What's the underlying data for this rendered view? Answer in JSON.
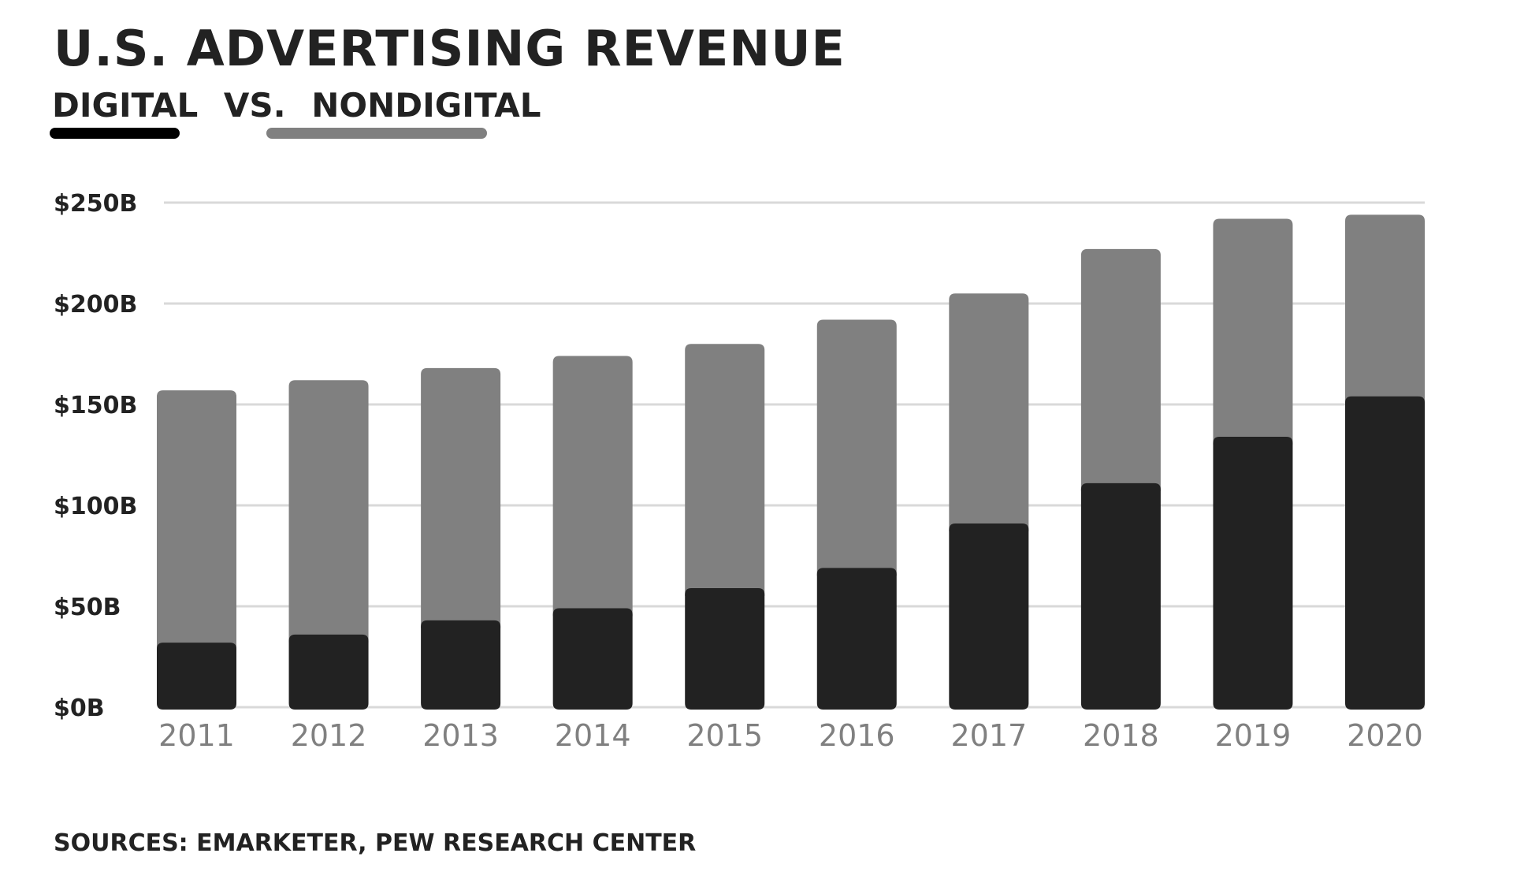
{
  "title": "U.S. ADVERTISING REVENUE",
  "subtitle": {
    "digital_label": "DIGITAL",
    "vs_label": "VS.",
    "nondigital_label": "NONDIGITAL"
  },
  "source": "SOURCES: EMARKETER, PEW RESEARCH CENTER",
  "colors": {
    "digital": "#222222",
    "nondigital": "#808080",
    "legend_digital": "#000000",
    "gridline": "#d9d9d9",
    "xtick": "#808080"
  },
  "chart_data": {
    "type": "bar",
    "stacked": true,
    "title": "U.S. ADVERTISING REVENUE",
    "subtitle": "DIGITAL VS. NONDIGITAL",
    "xlabel": "",
    "ylabel": "",
    "categories": [
      "2011",
      "2012",
      "2013",
      "2014",
      "2015",
      "2016",
      "2017",
      "2018",
      "2019",
      "2020"
    ],
    "series": [
      {
        "name": "Digital",
        "color": "#222222",
        "values": [
          32,
          36,
          43,
          49,
          59,
          69,
          91,
          111,
          134,
          154
        ]
      },
      {
        "name": "Nondigital",
        "color": "#808080",
        "values": [
          125,
          126,
          125,
          125,
          121,
          123,
          114,
          116,
          108,
          90
        ]
      }
    ],
    "totals": [
      157,
      162,
      168,
      174,
      180,
      192,
      205,
      227,
      242,
      244
    ],
    "ylim": [
      0,
      250
    ],
    "yticks": [
      0,
      50,
      100,
      150,
      200,
      250
    ],
    "ytick_labels": [
      "$0B",
      "$50B",
      "$100B",
      "$150B",
      "$200B",
      "$250B"
    ],
    "grid": true,
    "legend": "subtitle-underlines-top-left",
    "source": "SOURCES: EMARKETER, PEW RESEARCH CENTER"
  }
}
